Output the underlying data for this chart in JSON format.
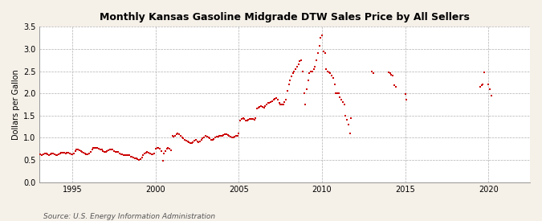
{
  "title": "Monthly Kansas Gasoline Midgrade DTW Sales Price by All Sellers",
  "ylabel": "Dollars per Gallon",
  "source": "Source: U.S. Energy Information Administration",
  "background_color": "#f5f0e8",
  "plot_background_color": "#ffffff",
  "marker_color": "#cc0000",
  "marker_size": 4.5,
  "xlim": [
    1993.0,
    2022.5
  ],
  "ylim": [
    0.0,
    3.5
  ],
  "yticks": [
    0.0,
    0.5,
    1.0,
    1.5,
    2.0,
    2.5,
    3.0,
    3.5
  ],
  "xticks": [
    1995,
    2000,
    2005,
    2010,
    2015,
    2020
  ],
  "raw_data": [
    [
      1993.08,
      0.62
    ],
    [
      1993.17,
      0.6
    ],
    [
      1993.25,
      0.62
    ],
    [
      1993.33,
      0.64
    ],
    [
      1993.42,
      0.65
    ],
    [
      1993.5,
      0.63
    ],
    [
      1993.58,
      0.61
    ],
    [
      1993.67,
      0.62
    ],
    [
      1993.75,
      0.64
    ],
    [
      1993.83,
      0.64
    ],
    [
      1993.92,
      0.63
    ],
    [
      1994.0,
      0.61
    ],
    [
      1994.08,
      0.6
    ],
    [
      1994.17,
      0.62
    ],
    [
      1994.25,
      0.65
    ],
    [
      1994.33,
      0.67
    ],
    [
      1994.42,
      0.67
    ],
    [
      1994.5,
      0.66
    ],
    [
      1994.58,
      0.65
    ],
    [
      1994.67,
      0.67
    ],
    [
      1994.75,
      0.67
    ],
    [
      1994.83,
      0.65
    ],
    [
      1994.92,
      0.63
    ],
    [
      1995.0,
      0.63
    ],
    [
      1995.08,
      0.65
    ],
    [
      1995.17,
      0.7
    ],
    [
      1995.25,
      0.73
    ],
    [
      1995.33,
      0.73
    ],
    [
      1995.42,
      0.72
    ],
    [
      1995.5,
      0.7
    ],
    [
      1995.58,
      0.68
    ],
    [
      1995.67,
      0.67
    ],
    [
      1995.75,
      0.65
    ],
    [
      1995.83,
      0.63
    ],
    [
      1995.92,
      0.63
    ],
    [
      1996.0,
      0.65
    ],
    [
      1996.08,
      0.68
    ],
    [
      1996.17,
      0.73
    ],
    [
      1996.25,
      0.77
    ],
    [
      1996.33,
      0.78
    ],
    [
      1996.42,
      0.78
    ],
    [
      1996.5,
      0.77
    ],
    [
      1996.58,
      0.75
    ],
    [
      1996.67,
      0.73
    ],
    [
      1996.75,
      0.73
    ],
    [
      1996.83,
      0.7
    ],
    [
      1996.92,
      0.68
    ],
    [
      1997.0,
      0.68
    ],
    [
      1997.08,
      0.7
    ],
    [
      1997.17,
      0.72
    ],
    [
      1997.25,
      0.73
    ],
    [
      1997.33,
      0.73
    ],
    [
      1997.42,
      0.73
    ],
    [
      1997.5,
      0.7
    ],
    [
      1997.58,
      0.68
    ],
    [
      1997.67,
      0.68
    ],
    [
      1997.75,
      0.68
    ],
    [
      1997.83,
      0.65
    ],
    [
      1997.92,
      0.63
    ],
    [
      1998.0,
      0.62
    ],
    [
      1998.08,
      0.6
    ],
    [
      1998.17,
      0.6
    ],
    [
      1998.25,
      0.6
    ],
    [
      1998.33,
      0.6
    ],
    [
      1998.42,
      0.6
    ],
    [
      1998.5,
      0.58
    ],
    [
      1998.58,
      0.57
    ],
    [
      1998.67,
      0.55
    ],
    [
      1998.75,
      0.54
    ],
    [
      1998.83,
      0.53
    ],
    [
      1998.92,
      0.52
    ],
    [
      1999.0,
      0.5
    ],
    [
      1999.08,
      0.52
    ],
    [
      1999.17,
      0.55
    ],
    [
      1999.25,
      0.6
    ],
    [
      1999.33,
      0.65
    ],
    [
      1999.42,
      0.67
    ],
    [
      1999.5,
      0.68
    ],
    [
      1999.58,
      0.67
    ],
    [
      1999.67,
      0.65
    ],
    [
      1999.75,
      0.63
    ],
    [
      1999.83,
      0.63
    ],
    [
      1999.92,
      0.65
    ],
    [
      2000.0,
      0.75
    ],
    [
      2000.08,
      0.78
    ],
    [
      2000.17,
      0.78
    ],
    [
      2000.25,
      0.75
    ],
    [
      2000.33,
      0.7
    ],
    [
      2000.42,
      0.48
    ],
    [
      2000.5,
      0.65
    ],
    [
      2000.58,
      0.7
    ],
    [
      2000.67,
      0.75
    ],
    [
      2000.75,
      0.77
    ],
    [
      2000.83,
      0.75
    ],
    [
      2000.92,
      0.72
    ],
    [
      2001.0,
      1.05
    ],
    [
      2001.08,
      1.03
    ],
    [
      2001.17,
      1.05
    ],
    [
      2001.25,
      1.08
    ],
    [
      2001.33,
      1.1
    ],
    [
      2001.42,
      1.08
    ],
    [
      2001.5,
      1.05
    ],
    [
      2001.58,
      1.0
    ],
    [
      2001.67,
      0.98
    ],
    [
      2001.75,
      0.95
    ],
    [
      2001.83,
      0.93
    ],
    [
      2001.92,
      0.92
    ],
    [
      2002.0,
      0.9
    ],
    [
      2002.08,
      0.88
    ],
    [
      2002.17,
      0.88
    ],
    [
      2002.25,
      0.9
    ],
    [
      2002.33,
      0.93
    ],
    [
      2002.42,
      0.95
    ],
    [
      2002.5,
      0.92
    ],
    [
      2002.58,
      0.9
    ],
    [
      2002.67,
      0.92
    ],
    [
      2002.75,
      0.95
    ],
    [
      2002.83,
      0.98
    ],
    [
      2002.92,
      1.0
    ],
    [
      2003.0,
      1.05
    ],
    [
      2003.08,
      1.02
    ],
    [
      2003.17,
      1.0
    ],
    [
      2003.25,
      0.98
    ],
    [
      2003.33,
      0.95
    ],
    [
      2003.42,
      0.95
    ],
    [
      2003.5,
      0.97
    ],
    [
      2003.58,
      1.0
    ],
    [
      2003.67,
      1.02
    ],
    [
      2003.75,
      1.03
    ],
    [
      2003.83,
      1.05
    ],
    [
      2003.92,
      1.05
    ],
    [
      2004.0,
      1.05
    ],
    [
      2004.08,
      1.07
    ],
    [
      2004.17,
      1.08
    ],
    [
      2004.25,
      1.08
    ],
    [
      2004.33,
      1.07
    ],
    [
      2004.42,
      1.05
    ],
    [
      2004.5,
      1.02
    ],
    [
      2004.58,
      1.0
    ],
    [
      2004.67,
      1.0
    ],
    [
      2004.75,
      1.02
    ],
    [
      2004.83,
      1.05
    ],
    [
      2004.92,
      1.05
    ],
    [
      2005.0,
      1.1
    ],
    [
      2005.08,
      1.38
    ],
    [
      2005.17,
      1.43
    ],
    [
      2005.25,
      1.45
    ],
    [
      2005.33,
      1.42
    ],
    [
      2005.42,
      1.38
    ],
    [
      2005.5,
      1.38
    ],
    [
      2005.58,
      1.4
    ],
    [
      2005.67,
      1.42
    ],
    [
      2005.75,
      1.42
    ],
    [
      2005.83,
      1.42
    ],
    [
      2005.92,
      1.4
    ],
    [
      2006.0,
      1.45
    ],
    [
      2006.08,
      1.65
    ],
    [
      2006.17,
      1.68
    ],
    [
      2006.25,
      1.7
    ],
    [
      2006.33,
      1.72
    ],
    [
      2006.42,
      1.7
    ],
    [
      2006.5,
      1.68
    ],
    [
      2006.58,
      1.72
    ],
    [
      2006.67,
      1.75
    ],
    [
      2006.75,
      1.78
    ],
    [
      2006.83,
      1.78
    ],
    [
      2006.92,
      1.8
    ],
    [
      2007.0,
      1.82
    ],
    [
      2007.08,
      1.85
    ],
    [
      2007.17,
      1.88
    ],
    [
      2007.25,
      1.9
    ],
    [
      2007.33,
      1.85
    ],
    [
      2007.42,
      1.78
    ],
    [
      2007.5,
      1.75
    ],
    [
      2007.58,
      1.75
    ],
    [
      2007.67,
      1.75
    ],
    [
      2007.75,
      1.8
    ],
    [
      2007.83,
      1.85
    ],
    [
      2007.92,
      2.05
    ],
    [
      2008.0,
      2.2
    ],
    [
      2008.08,
      2.3
    ],
    [
      2008.17,
      2.38
    ],
    [
      2008.25,
      2.45
    ],
    [
      2008.33,
      2.5
    ],
    [
      2008.42,
      2.55
    ],
    [
      2008.5,
      2.6
    ],
    [
      2008.58,
      2.65
    ],
    [
      2008.67,
      2.72
    ],
    [
      2008.75,
      2.75
    ],
    [
      2008.83,
      2.5
    ],
    [
      2008.92,
      2.0
    ],
    [
      2009.0,
      1.75
    ],
    [
      2009.08,
      2.1
    ],
    [
      2009.17,
      2.3
    ],
    [
      2009.25,
      2.45
    ],
    [
      2009.33,
      2.5
    ],
    [
      2009.42,
      2.5
    ],
    [
      2009.5,
      2.55
    ],
    [
      2009.58,
      2.6
    ],
    [
      2009.67,
      2.75
    ],
    [
      2009.75,
      2.9
    ],
    [
      2009.83,
      3.08
    ],
    [
      2009.92,
      3.25
    ],
    [
      2010.0,
      3.3
    ],
    [
      2010.08,
      2.95
    ],
    [
      2010.17,
      2.9
    ],
    [
      2010.25,
      2.55
    ],
    [
      2010.33,
      2.5
    ],
    [
      2010.42,
      2.48
    ],
    [
      2010.5,
      2.45
    ],
    [
      2010.58,
      2.4
    ],
    [
      2010.67,
      2.35
    ],
    [
      2010.75,
      2.2
    ],
    [
      2010.83,
      2.0
    ],
    [
      2010.92,
      2.0
    ],
    [
      2011.0,
      2.0
    ],
    [
      2011.08,
      1.92
    ],
    [
      2011.17,
      1.85
    ],
    [
      2011.25,
      1.8
    ],
    [
      2011.33,
      1.75
    ],
    [
      2011.42,
      1.5
    ],
    [
      2011.5,
      1.4
    ],
    [
      2011.58,
      1.3
    ],
    [
      2011.67,
      1.1
    ],
    [
      2011.75,
      1.45
    ],
    [
      2013.0,
      2.5
    ],
    [
      2013.08,
      2.45
    ],
    [
      2014.0,
      2.48
    ],
    [
      2014.08,
      2.45
    ],
    [
      2014.17,
      2.42
    ],
    [
      2014.25,
      2.4
    ],
    [
      2014.33,
      2.18
    ],
    [
      2014.42,
      2.15
    ],
    [
      2015.0,
      1.98
    ],
    [
      2015.08,
      1.85
    ],
    [
      2019.5,
      2.15
    ],
    [
      2019.58,
      2.18
    ],
    [
      2019.67,
      2.2
    ],
    [
      2019.75,
      2.48
    ],
    [
      2020.0,
      2.2
    ],
    [
      2020.08,
      2.1
    ],
    [
      2020.17,
      1.95
    ]
  ]
}
